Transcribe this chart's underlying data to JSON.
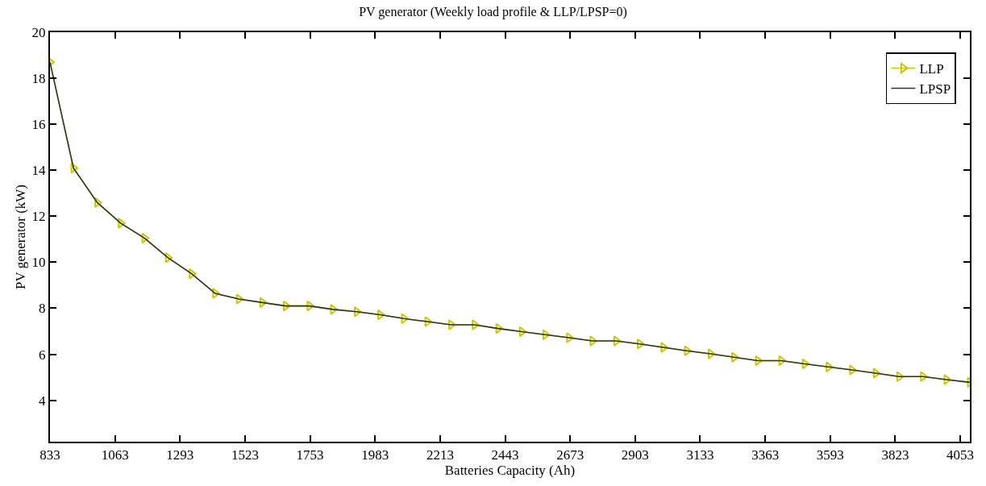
{
  "chart_data": {
    "type": "line",
    "title": "PV generator (Weekly load profile & LLP/LPSP=0)",
    "xlabel": "Batteries Capacity (Ah)",
    "ylabel": "PV generator (kW)",
    "x": [
      833,
      916,
      1000,
      1083,
      1167,
      1250,
      1334,
      1417,
      1501,
      1584,
      1667,
      1751,
      1834,
      1918,
      2001,
      2085,
      2168,
      2252,
      2335,
      2419,
      2502,
      2585,
      2669,
      2752,
      2836,
      2919,
      3003,
      3086,
      3170,
      3253,
      3337,
      3420,
      3503,
      3587,
      3670,
      3754,
      3837,
      3921,
      4004,
      4087
    ],
    "series": [
      {
        "name": "LLP",
        "color": "#c8c800",
        "marker": "triangle",
        "values": [
          18.7,
          14.1,
          12.6,
          11.7,
          11.05,
          10.2,
          9.5,
          8.65,
          8.4,
          8.25,
          8.1,
          8.1,
          7.95,
          7.85,
          7.72,
          7.55,
          7.42,
          7.28,
          7.28,
          7.12,
          6.98,
          6.85,
          6.72,
          6.58,
          6.58,
          6.45,
          6.3,
          6.15,
          6.02,
          5.87,
          5.72,
          5.72,
          5.58,
          5.45,
          5.32,
          5.18,
          5.03,
          5.03,
          4.9,
          4.78
        ]
      },
      {
        "name": "LPSP",
        "color": "#333333",
        "marker": "none",
        "values": [
          18.7,
          14.1,
          12.6,
          11.7,
          11.05,
          10.2,
          9.5,
          8.65,
          8.4,
          8.25,
          8.1,
          8.1,
          7.95,
          7.85,
          7.72,
          7.55,
          7.42,
          7.28,
          7.28,
          7.12,
          6.98,
          6.85,
          6.72,
          6.58,
          6.58,
          6.45,
          6.3,
          6.15,
          6.02,
          5.87,
          5.72,
          5.72,
          5.58,
          5.45,
          5.32,
          5.18,
          5.03,
          5.03,
          4.9,
          4.78
        ]
      }
    ],
    "xlim": [
      833,
      4087
    ],
    "xticks": [
      833,
      1063,
      1293,
      1523,
      1753,
      1983,
      2213,
      2443,
      2673,
      2903,
      3133,
      3363,
      3593,
      3823,
      4053
    ],
    "ylim": [
      2.2,
      20
    ],
    "yticks": [
      4,
      6,
      8,
      10,
      12,
      14,
      16,
      18,
      20
    ],
    "legend": "top right",
    "line_style": "solid"
  }
}
